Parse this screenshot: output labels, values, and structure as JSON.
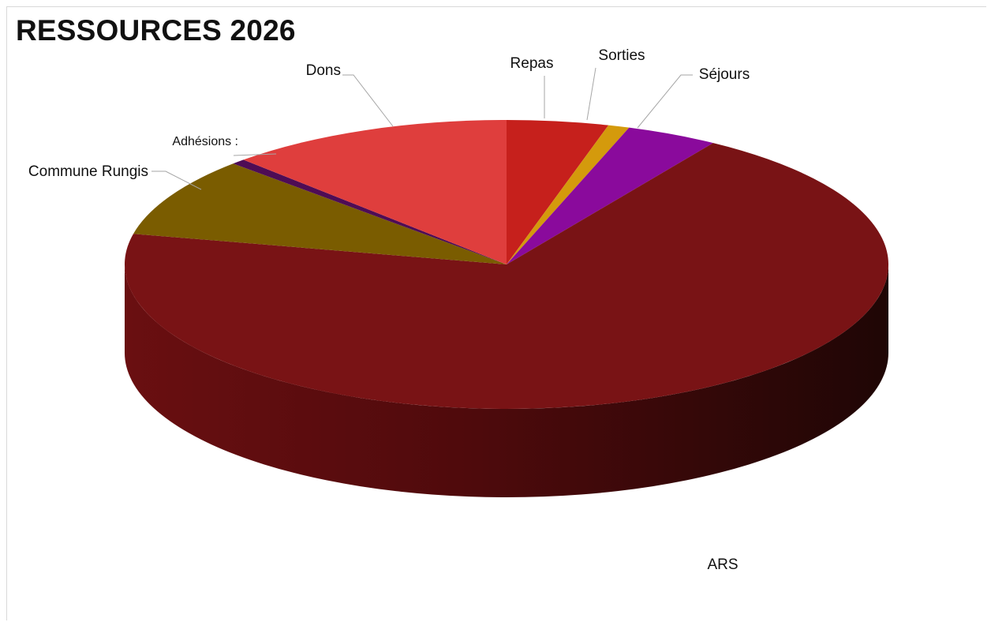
{
  "chart_data": {
    "type": "pie",
    "title": "RESSOURCES 2026",
    "style": "3d",
    "slices": [
      {
        "label": "Repas",
        "value": 4.3,
        "color": "#c6201c"
      },
      {
        "label": "Sorties",
        "value": 0.9,
        "color": "#d49a0c"
      },
      {
        "label": "Séjours",
        "value": 3.9,
        "color": "#8a0a9c"
      },
      {
        "label": "ARS",
        "value": 69.3,
        "color": "#791315"
      },
      {
        "label": "Commune Rungis",
        "value": 8.9,
        "color": "#7a5c00"
      },
      {
        "label": "Adhésions :",
        "value": 0.6,
        "color": "#4e0c55"
      },
      {
        "label": "Dons",
        "value": 12.1,
        "color": "#df3e3d"
      }
    ]
  }
}
